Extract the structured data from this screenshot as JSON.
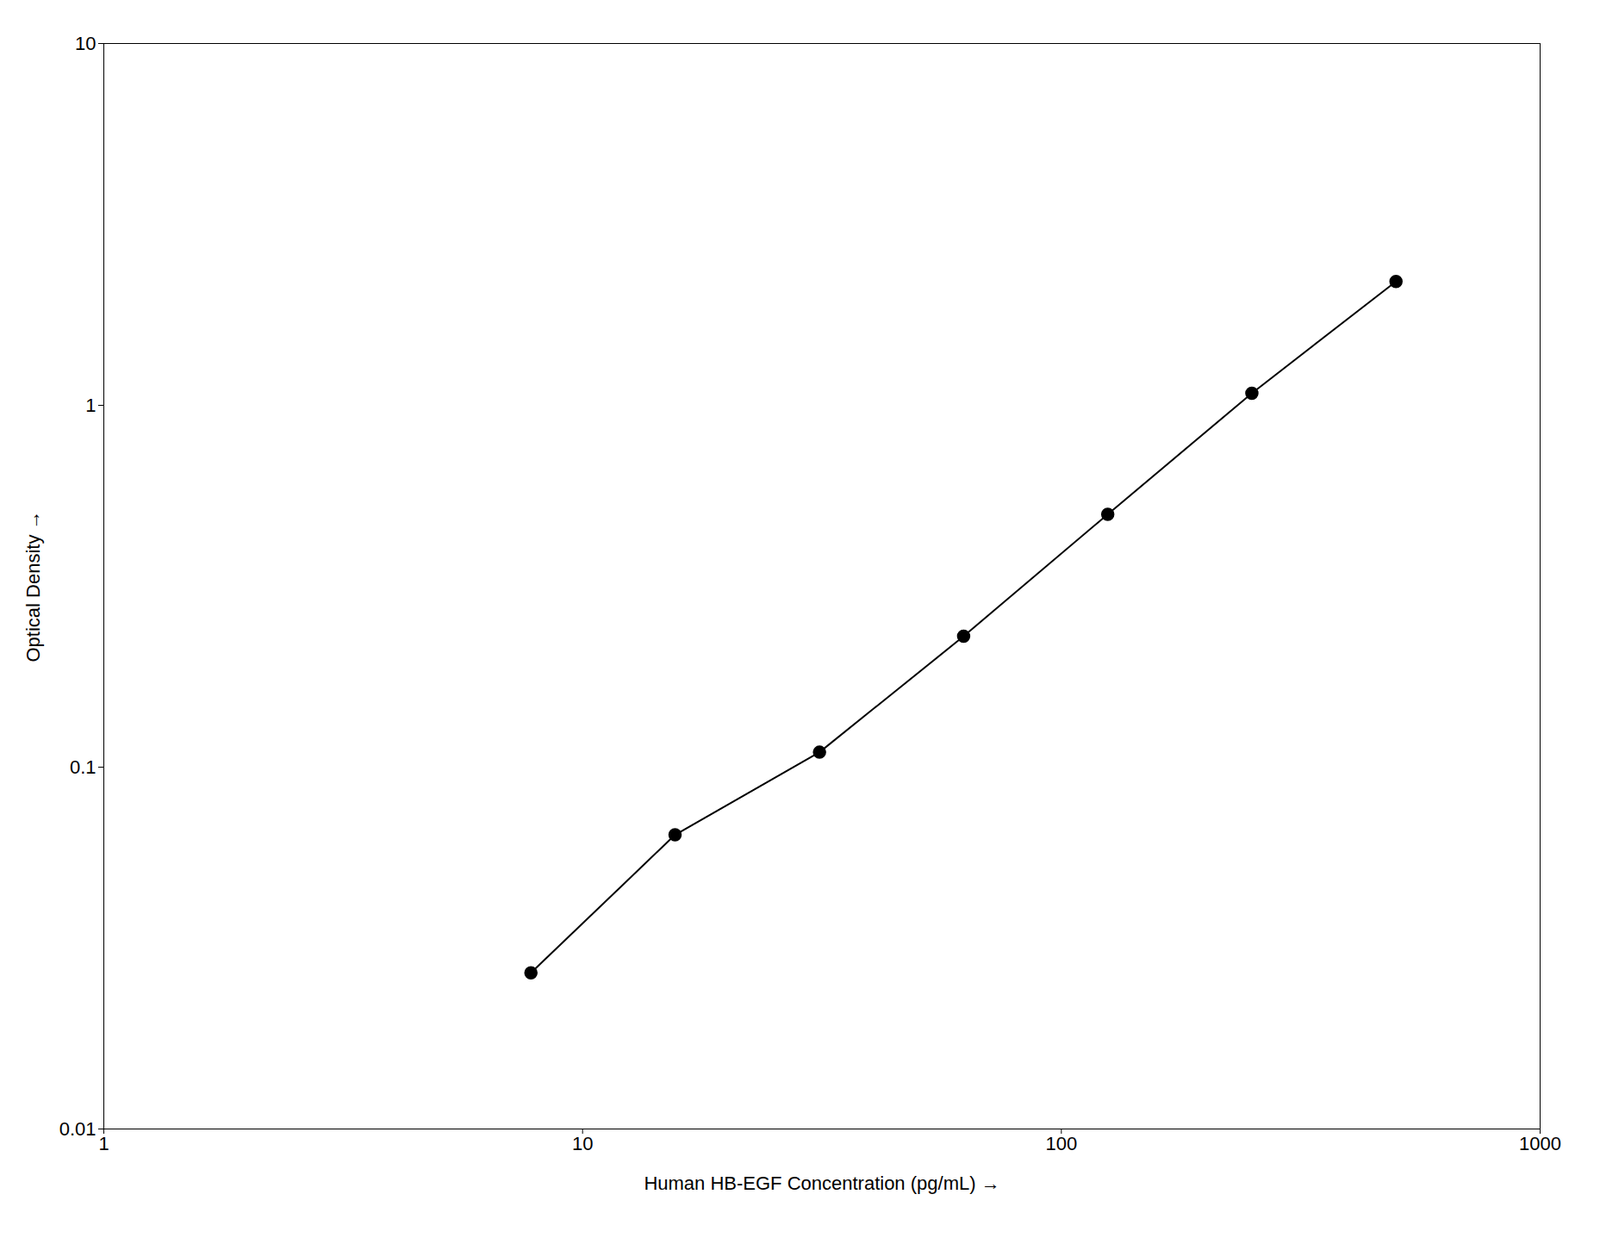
{
  "chart_data": {
    "type": "line",
    "x": [
      7.8,
      15.6,
      31.25,
      62.5,
      125,
      250,
      500
    ],
    "values": [
      0.027,
      0.065,
      0.11,
      0.23,
      0.5,
      1.08,
      2.2
    ],
    "xlabel": "Human HB-EGF Concentration (pg/mL)",
    "ylabel": "Optical Density",
    "xlim": [
      1,
      1000
    ],
    "ylim": [
      0.01,
      10
    ],
    "xticks": [
      1,
      10,
      100,
      1000
    ],
    "yticks": [
      0.01,
      0.1,
      1,
      10
    ],
    "log": true,
    "grid": false,
    "color": "#000000",
    "marker": "circle"
  }
}
